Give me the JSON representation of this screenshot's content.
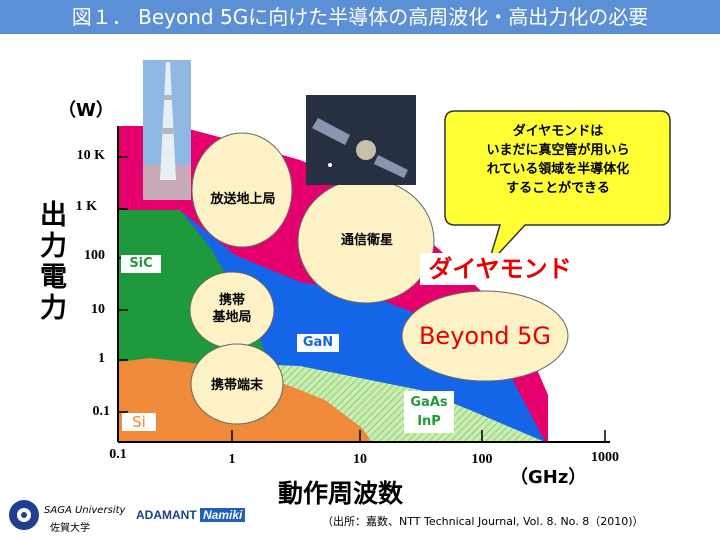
{
  "slide": {
    "title": "図１． Beyond 5Gに向けた半導体の高周波化・高出力化の必要"
  },
  "axes": {
    "y_unit": "（W）",
    "y_label": "出力電力",
    "x_unit": "（GHz）",
    "x_label": "動作周波数",
    "y_ticks": [
      "10 K",
      "1 K",
      "100",
      "10",
      "1",
      "0.1"
    ],
    "x_ticks": [
      "0.1",
      "1",
      "10",
      "100",
      "1000"
    ]
  },
  "regions": {
    "sic": "SiC",
    "gan": "GaN",
    "si": "Si",
    "gaas_line1": "GaAs",
    "gaas_line2": "InP",
    "diamond": "ダイヤモンド"
  },
  "bubbles": {
    "broadcast": "放送地上局",
    "satellite": "通信衛星",
    "base_line1": "携帯",
    "base_line2": "基地局",
    "terminal": "携帯端末",
    "beyond5g": "Beyond 5G"
  },
  "callout": {
    "line1": "ダイヤモンドは",
    "line2": "いまだに真空管が用いら",
    "line3": "れている領域を半導体化",
    "line4": "することができる"
  },
  "footer": {
    "university_en": "SAGA University",
    "university_ja": "佐賀大学",
    "company_part1": "ADAMANT",
    "company_part2": "Namiki",
    "citation": "（出所：嘉数、NTT Technical Journal, Vol. 8. No. 8（2010)）"
  },
  "colors": {
    "title_bar": "#5b8fd6",
    "diamond": "#e5006e",
    "gan": "#1565e8",
    "sic": "#1e9a3c",
    "si": "#ee8a3a",
    "gaas": "#b8e6a0",
    "bubble": "#fdf2c6",
    "callout": "#ffff33"
  }
}
